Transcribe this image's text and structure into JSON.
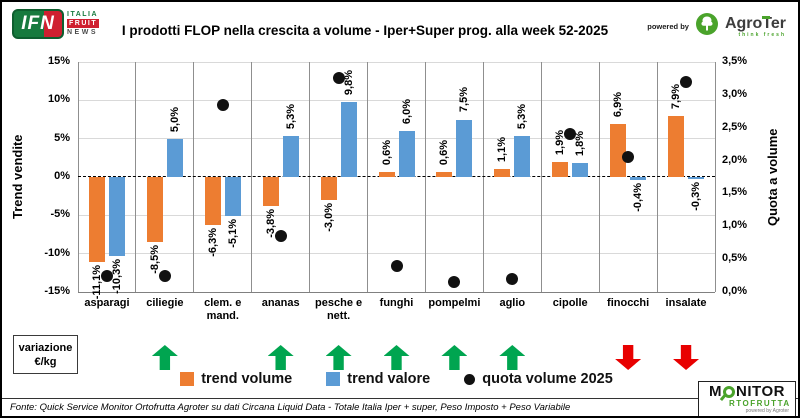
{
  "header": {
    "title": "I prodotti FLOP nella crescita a volume -  Iper+Super prog. alla week 52-2025",
    "powered_by": "powered by",
    "agroter_agro": "Agro",
    "agroter_ter": "Ter",
    "agroter_tagline": "think fresh",
    "ifn": {
      "abbr": "IFN",
      "line1": "ITALIA",
      "line2": "FRUIT",
      "line3": "NEWS"
    }
  },
  "chart_data": {
    "type": "bar",
    "overlay": "scatter",
    "categories": [
      "asparagi",
      "ciliegie",
      "clem. e mand.",
      "ananas",
      "pesche e nett.",
      "funghi",
      "pompelmi",
      "aglio",
      "cipolle",
      "finocchi",
      "insalate"
    ],
    "category_labels": [
      "asparagi",
      "ciliegie",
      "clem. e\nmand.",
      "ananas",
      "pesche e\nnett.",
      "funghi",
      "pompelmi",
      "aglio",
      "cipolle",
      "finocchi",
      "insalate"
    ],
    "series": [
      {
        "name": "trend volume",
        "type": "bar",
        "axis": "left",
        "color": "#ED7D31",
        "values": [
          -11.1,
          -8.5,
          -6.3,
          -3.8,
          -3.0,
          0.6,
          0.6,
          1.1,
          1.9,
          6.9,
          7.9
        ],
        "labels": [
          "-11,1%",
          "-8,5%",
          "-6,3%",
          "-3,8%",
          "-3,0%",
          "0,6%",
          "0,6%",
          "1,1%",
          "1,9%",
          "6,9%",
          "7,9%"
        ]
      },
      {
        "name": "trend valore",
        "type": "bar",
        "axis": "left",
        "color": "#5B9BD5",
        "values": [
          -10.3,
          5.0,
          -5.1,
          5.3,
          9.8,
          6.0,
          7.5,
          5.3,
          1.8,
          -0.4,
          -0.3
        ],
        "labels": [
          "-10,3%",
          "5,0%",
          "-5,1%",
          "5,3%",
          "9,8%",
          "6,0%",
          "7,5%",
          "5,3%",
          "1,8%",
          "-0,4%",
          "-0,3%"
        ]
      },
      {
        "name": "quota volume 2025",
        "type": "scatter",
        "axis": "right",
        "color": "#111111",
        "values": [
          0.25,
          0.25,
          2.85,
          0.85,
          3.25,
          0.4,
          0.15,
          0.2,
          2.4,
          2.05,
          3.2
        ]
      }
    ],
    "arrows": [
      null,
      "up",
      null,
      "up",
      "up",
      "up",
      "up",
      "up",
      null,
      "down",
      "down"
    ],
    "arrow_colors": {
      "up": "#00A550",
      "down": "#E80000"
    },
    "left_axis": {
      "title": "Trend vendite",
      "min": -15,
      "max": 15,
      "tick_values": [
        15,
        10,
        5,
        0,
        -5,
        -10,
        -15
      ],
      "ticks": [
        "15%",
        "10%",
        "5%",
        "0%",
        "-5%",
        "-10%",
        "-15%"
      ]
    },
    "right_axis": {
      "title": "Quota a volume",
      "min": 0,
      "max": 3.5,
      "tick_values": [
        3.5,
        3.0,
        2.5,
        2.0,
        1.5,
        1.0,
        0.5,
        0.0
      ],
      "ticks": [
        "3,5%",
        "3,0%",
        "2,5%",
        "2,0%",
        "1,5%",
        "1,0%",
        "0,5%",
        "0,0%"
      ]
    },
    "grid": true,
    "zero_line": "dashed"
  },
  "legend": [
    {
      "label": "trend volume",
      "swatch": "square",
      "color": "#ED7D31"
    },
    {
      "label": "trend valore",
      "swatch": "square",
      "color": "#5B9BD5"
    },
    {
      "label": "quota volume 2025",
      "swatch": "circle",
      "color": "#111111"
    }
  ],
  "annotation_box": {
    "line1": "variazione",
    "line2": "€/kg"
  },
  "footer": {
    "source": "Fonte: Quick Service Monitor Ortofrutta Agroter su dati Circana Liquid Data - Totale Italia Iper + super, Peso Imposto + Peso Variabile"
  },
  "monitor_logo": {
    "m": "M",
    "nitor": "NITOR",
    "line2": "RTOFRUTTA",
    "powered": "powered by Agroter"
  }
}
